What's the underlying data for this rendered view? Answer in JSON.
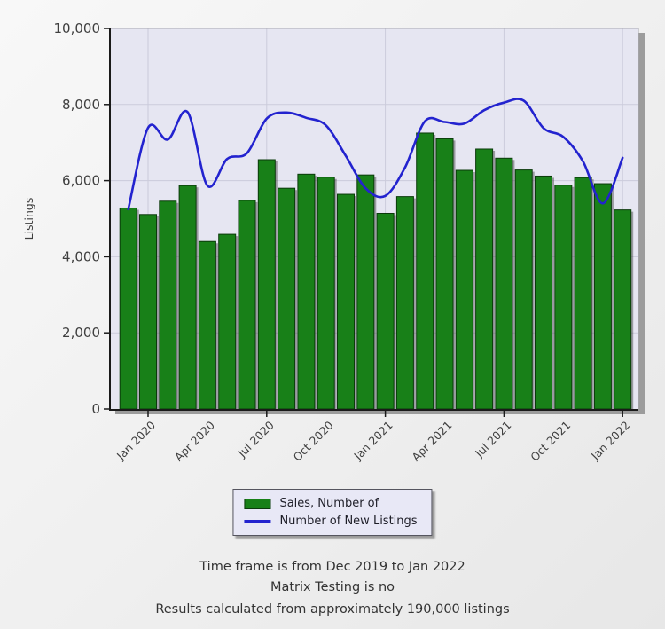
{
  "chart_data": {
    "type": "bar",
    "title": "",
    "ylabel": "Listings",
    "xlabel": "",
    "ylim": [
      0,
      10000
    ],
    "grid": true,
    "legend_position": "bottom",
    "y_ticks": [
      0,
      2000,
      4000,
      6000,
      8000,
      10000
    ],
    "y_tick_labels": [
      "0",
      "2,000",
      "4,000",
      "6,000",
      "8,000",
      "10,000"
    ],
    "categories": [
      "Dec 2019",
      "Jan 2020",
      "Feb 2020",
      "Mar 2020",
      "Apr 2020",
      "May 2020",
      "Jun 2020",
      "Jul 2020",
      "Aug 2020",
      "Sep 2020",
      "Oct 2020",
      "Nov 2020",
      "Dec 2020",
      "Jan 2021",
      "Feb 2021",
      "Mar 2021",
      "Apr 2021",
      "May 2021",
      "Jun 2021",
      "Jul 2021",
      "Aug 2021",
      "Sep 2021",
      "Oct 2021",
      "Nov 2021",
      "Dec 2021",
      "Jan 2022"
    ],
    "x_label_indices": [
      1,
      4,
      7,
      10,
      13,
      16,
      19,
      22,
      25
    ],
    "x_tick_labels": [
      "Jan 2020",
      "Apr 2020",
      "Jul 2020",
      "Oct 2020",
      "Jan 2021",
      "Apr 2021",
      "Jul 2021",
      "Oct 2021",
      "Jan 2022"
    ],
    "x_major_tick_indices": [
      1,
      7,
      13,
      19,
      25
    ],
    "series": [
      {
        "name": "Sales, Number of",
        "render": "bar",
        "color": "#188018",
        "values": [
          5280,
          5110,
          5460,
          5870,
          4400,
          4590,
          5480,
          6550,
          5800,
          6170,
          6090,
          5640,
          6150,
          5140,
          5580,
          7250,
          7100,
          6270,
          6830,
          6590,
          6280,
          6120,
          5880,
          6080,
          5920,
          5230
        ]
      },
      {
        "name": "Number of New Listings",
        "render": "line",
        "color": "#2323cf",
        "values": [
          5250,
          7390,
          7080,
          7800,
          5870,
          6570,
          6720,
          7630,
          7790,
          7650,
          7450,
          6650,
          5800,
          5600,
          6350,
          7560,
          7540,
          7500,
          7850,
          8050,
          8100,
          7380,
          7150,
          6500,
          5400,
          6600
        ]
      }
    ]
  },
  "legend": {
    "items": [
      {
        "label": "Sales, Number of",
        "swatch": "bar",
        "color": "#188018"
      },
      {
        "label": "Number of New Listings",
        "swatch": "line",
        "color": "#2323cf"
      }
    ]
  },
  "footer": {
    "line1": "Time frame is from Dec 2019 to Jan 2022",
    "line2": "Matrix Testing is no",
    "line3": "Results calculated from approximately 190,000 listings"
  },
  "colors": {
    "plot_background": "#e6e6f2",
    "gridline": "#cbcbdb",
    "axis": "#1a1a1a",
    "tick_text": "#3f3f3f",
    "bar_fill": "#188018",
    "bar_border": "#0b3a0b",
    "line": "#2323cf",
    "shadow": "#9c9c9c",
    "plot_border": "#a8a8b0"
  }
}
